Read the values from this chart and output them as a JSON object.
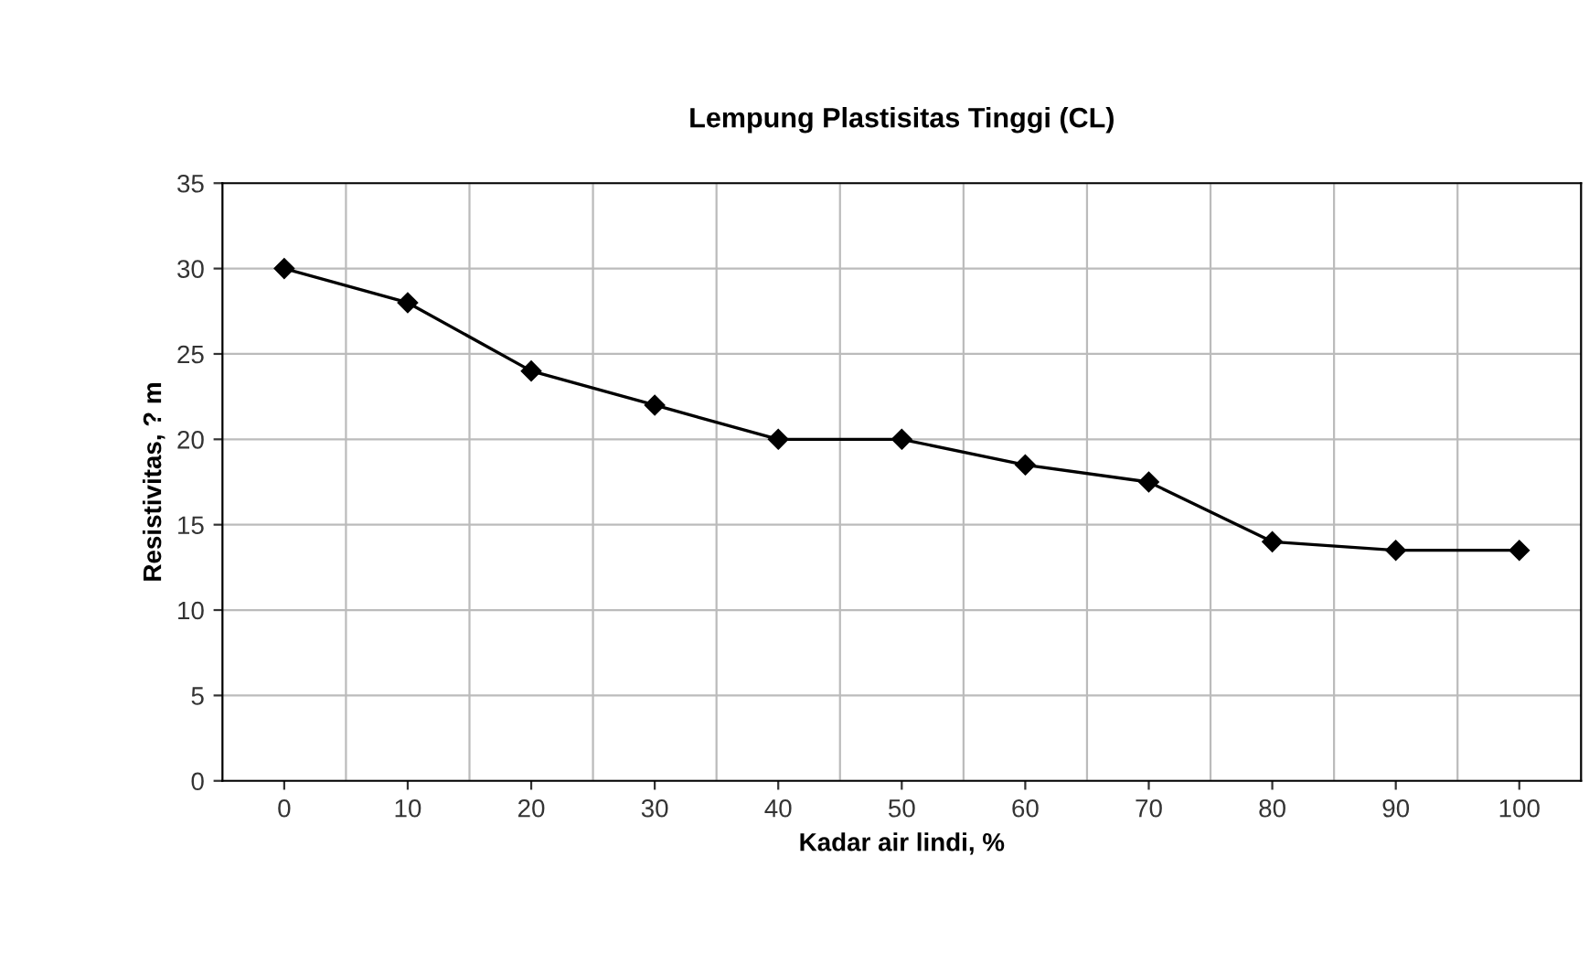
{
  "chart_data": {
    "type": "line",
    "title": "Lempung Plastisitas Tinggi (CL)",
    "xlabel": "Kadar air lindi, %",
    "ylabel": "Resistivitas, ? m",
    "categories": [
      "0",
      "10",
      "20",
      "30",
      "40",
      "50",
      "60",
      "70",
      "80",
      "90",
      "100"
    ],
    "series": [
      {
        "color": "#000000",
        "values": [
          30,
          28,
          24,
          22,
          20,
          20,
          18.5,
          17.5,
          14,
          13.5,
          13.5
        ]
      }
    ],
    "ylim": [
      0,
      35
    ],
    "yticks": [
      0,
      5,
      10,
      15,
      20,
      25,
      30,
      35
    ],
    "grid": true,
    "marker": "diamond",
    "line_style": "solid",
    "legend": false
  }
}
